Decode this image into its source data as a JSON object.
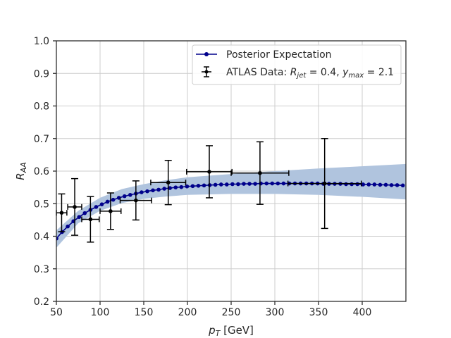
{
  "chart_data": {
    "type": "line",
    "xlabel_main": "p",
    "xlabel_sub": "T",
    "xlabel_unit": " [GeV]",
    "ylabel_main": "R",
    "ylabel_sub": "AA",
    "xlim": [
      50,
      450
    ],
    "ylim": [
      0.2,
      1.0
    ],
    "xticks": [
      50,
      100,
      150,
      200,
      250,
      300,
      350,
      400
    ],
    "yticks": [
      0.2,
      0.3,
      0.4,
      0.5,
      0.6,
      0.7,
      0.8,
      0.9,
      1.0
    ],
    "xtick_labels": [
      "50",
      "100",
      "150",
      "200",
      "250",
      "300",
      "350",
      "400"
    ],
    "ytick_labels": [
      "0.2",
      "0.3",
      "0.4",
      "0.5",
      "0.6",
      "0.7",
      "0.8",
      "0.9",
      "1.0"
    ],
    "grid": true,
    "legend_position": "top-right",
    "colors": {
      "line": "#00008b",
      "band": "#b0c4de",
      "data": "#000000",
      "grid": "#cccccc",
      "axes": "#262626"
    },
    "series": [
      {
        "name": "Posterior Expectation",
        "kind": "line-with-band",
        "x": [
          50,
          56.5,
          63,
          69.5,
          76,
          82.5,
          89,
          95.5,
          102,
          108.5,
          115,
          121.5,
          128,
          134.5,
          141,
          147.5,
          154,
          160.5,
          167,
          173.5,
          180,
          186.5,
          193,
          199.5,
          206,
          212.5,
          219,
          225.5,
          232,
          238.5,
          245,
          251.5,
          258,
          264.5,
          271,
          277.5,
          284,
          290.5,
          297,
          303.5,
          310,
          316.5,
          323,
          329.5,
          336,
          342.5,
          349,
          355.5,
          362,
          368.5,
          375,
          381.5,
          388,
          394.5,
          401,
          407.5,
          414,
          420.5,
          427,
          433.5,
          440,
          446.5
        ],
        "y": [
          0.393,
          0.413,
          0.43,
          0.446,
          0.459,
          0.471,
          0.481,
          0.49,
          0.498,
          0.506,
          0.512,
          0.518,
          0.523,
          0.527,
          0.531,
          0.535,
          0.538,
          0.541,
          0.543,
          0.546,
          0.548,
          0.55,
          0.551,
          0.553,
          0.554,
          0.555,
          0.556,
          0.557,
          0.558,
          0.559,
          0.559,
          0.56,
          0.56,
          0.561,
          0.561,
          0.561,
          0.562,
          0.562,
          0.562,
          0.562,
          0.562,
          0.562,
          0.562,
          0.562,
          0.562,
          0.562,
          0.562,
          0.561,
          0.561,
          0.561,
          0.561,
          0.56,
          0.56,
          0.56,
          0.559,
          0.559,
          0.559,
          0.558,
          0.558,
          0.557,
          0.557,
          0.556
        ],
        "band_x": [
          50,
          75,
          100,
          125,
          150,
          175,
          200,
          250,
          300,
          350,
          400,
          450
        ],
        "band_lower": [
          0.365,
          0.44,
          0.478,
          0.502,
          0.515,
          0.522,
          0.527,
          0.53,
          0.53,
          0.527,
          0.521,
          0.513
        ],
        "band_upper": [
          0.418,
          0.478,
          0.518,
          0.545,
          0.56,
          0.572,
          0.581,
          0.591,
          0.6,
          0.608,
          0.615,
          0.622
        ]
      },
      {
        "name": "ATLAS Data",
        "legend_rjet": "0.4",
        "legend_ymax": "2.1",
        "kind": "errorbar",
        "points": [
          {
            "x": 56,
            "y": 0.472,
            "xerr": 6,
            "yerr": 0.058
          },
          {
            "x": 71,
            "y": 0.49,
            "xerr": 8,
            "yerr": 0.087
          },
          {
            "x": 89,
            "y": 0.452,
            "xerr": 10,
            "yerr": 0.07
          },
          {
            "x": 112,
            "y": 0.477,
            "xerr": 12,
            "yerr": 0.056
          },
          {
            "x": 141,
            "y": 0.51,
            "xerr": 18,
            "yerr": 0.06
          },
          {
            "x": 178,
            "y": 0.565,
            "xerr": 20,
            "yerr": 0.068
          },
          {
            "x": 225,
            "y": 0.598,
            "xerr": 26,
            "yerr": 0.08
          },
          {
            "x": 283,
            "y": 0.594,
            "xerr": 33,
            "yerr": 0.096
          },
          {
            "x": 357,
            "y": 0.562,
            "xerr": 42,
            "yerr": 0.138
          }
        ]
      }
    ]
  }
}
